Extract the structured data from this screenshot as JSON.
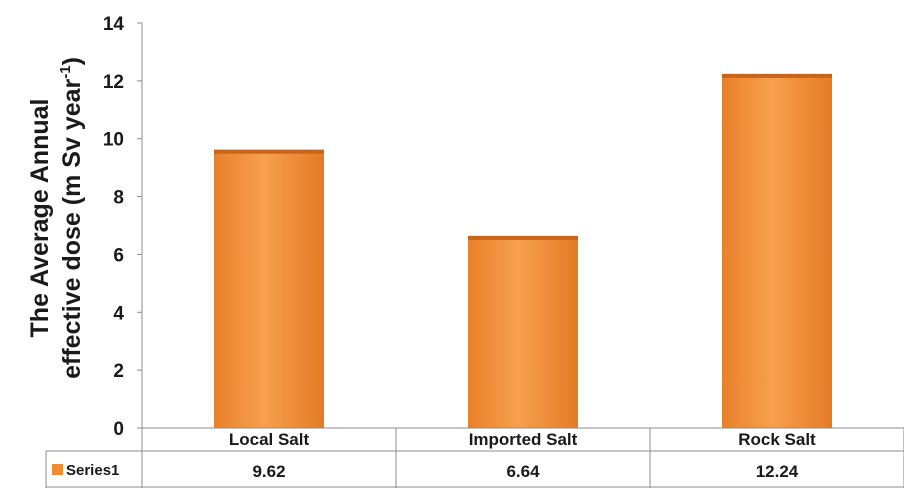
{
  "chart_data": {
    "type": "bar",
    "categories": [
      "Local Salt",
      "Imported Salt",
      "Rock Salt"
    ],
    "series": [
      {
        "name": "Series1",
        "values": [
          9.62,
          6.64,
          12.24
        ],
        "color": "#f08c32"
      }
    ],
    "value_labels": [
      "9.62",
      "6.64",
      "12.24"
    ],
    "ylabel_line1": "The Average Annual",
    "ylabel_line2": "effective dose (m Sv year",
    "ylabel_sup": "-1",
    "ylabel_close": ")",
    "ylim": [
      0,
      14
    ],
    "yticks": [
      0,
      2,
      4,
      6,
      8,
      10,
      12,
      14
    ],
    "grid": false,
    "legend": "data-table-left",
    "data_table": true
  }
}
